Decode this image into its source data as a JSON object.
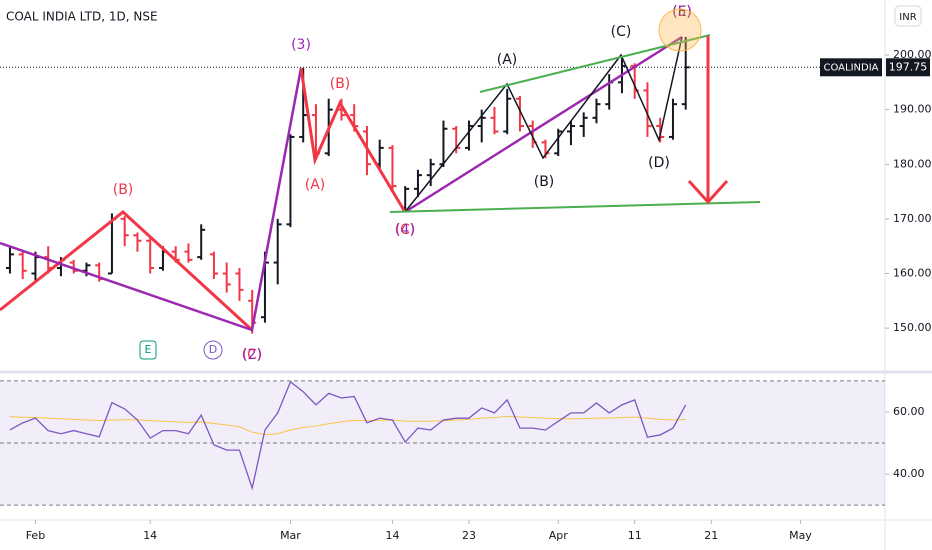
{
  "header": {
    "title": "COAL INDIA LTD, 1D, NSE",
    "currency": "INR"
  },
  "chart_data": [
    {
      "type": "ohlc",
      "symbol": "COALINDIA",
      "open": [
        161,
        163.5,
        160,
        163,
        161,
        162,
        160.5,
        161.5,
        160,
        170,
        167,
        166,
        161,
        164,
        164,
        163,
        163.5,
        160,
        160,
        155,
        152,
        162,
        169,
        185,
        189,
        182,
        190,
        189,
        186,
        180,
        183,
        172,
        175.5,
        178,
        180,
        186.5,
        183,
        187,
        188.5,
        186,
        192,
        187,
        184,
        182,
        186,
        187,
        188.5,
        191,
        195,
        198,
        193.5,
        187,
        185,
        191
      ],
      "high": [
        165,
        164,
        164,
        165,
        163,
        162.5,
        162,
        162,
        171,
        170.5,
        167.5,
        166.5,
        165,
        165,
        165.5,
        169,
        164,
        162,
        161,
        157,
        164,
        170,
        185.5,
        197.6,
        191,
        192,
        192,
        191,
        187,
        184.5,
        183.5,
        176,
        179,
        181,
        188,
        187,
        188,
        190,
        190.5,
        193.8,
        192.5,
        188,
        184.5,
        186.5,
        188,
        189.5,
        192,
        196.5,
        199.8,
        198.5,
        195,
        188.5,
        192,
        203.3
      ],
      "low": [
        160,
        159,
        158.5,
        160,
        159.5,
        160,
        159.5,
        158.5,
        160,
        165,
        164,
        160,
        160.5,
        162,
        162,
        162.5,
        159,
        156.5,
        155,
        149,
        151,
        158,
        168.5,
        184,
        180.8,
        181.5,
        188,
        186,
        178,
        179,
        175,
        171.3,
        174,
        176,
        179.5,
        182,
        182.5,
        184,
        185.5,
        185.5,
        186,
        183,
        181.1,
        181.5,
        183.5,
        185,
        187.5,
        190,
        193,
        192,
        185,
        184,
        184.5,
        190
      ],
      "close": [
        163.5,
        160.5,
        163,
        161,
        162.5,
        160.5,
        161.5,
        159,
        170,
        167,
        166,
        161,
        164,
        162.5,
        162.5,
        168,
        160,
        158,
        157,
        151,
        162,
        169,
        185,
        189,
        182,
        190,
        189,
        187,
        180,
        183,
        176,
        175.5,
        178,
        180,
        186.5,
        183,
        187,
        188.5,
        186,
        192,
        187,
        184,
        182,
        186,
        187,
        188.5,
        191,
        195,
        198,
        193.5,
        187,
        185,
        191,
        197.75
      ],
      "up_color": "#131722",
      "down_color": "#f23645",
      "xlim": [
        -0.78,
        68.63
      ],
      "ylim": [
        142.7,
        210.07
      ],
      "yticks": [
        {
          "value": 150,
          "label": "150.00"
        },
        {
          "value": 160,
          "label": "160.00"
        },
        {
          "value": 170,
          "label": "170.00"
        },
        {
          "value": 180,
          "label": "180.00"
        },
        {
          "value": 190,
          "label": "190.00"
        },
        {
          "value": 200,
          "label": "200.00"
        }
      ],
      "xticks": [
        {
          "value": 2,
          "label": "Feb"
        },
        {
          "value": 11,
          "label": "14"
        },
        {
          "value": 22,
          "label": "Mar"
        },
        {
          "value": 30,
          "label": "14"
        },
        {
          "value": 36,
          "label": "23"
        },
        {
          "value": 43,
          "label": "Apr"
        },
        {
          "value": 49,
          "label": "11"
        },
        {
          "value": 55,
          "label": "21"
        },
        {
          "value": 62,
          "label": "May"
        }
      ],
      "annotations": [
        {
          "text": "(B)",
          "color": "#f23645"
        },
        {
          "text": "(C)",
          "color": "#f23645"
        },
        {
          "text": "(2)",
          "color": "#9c27b0"
        },
        {
          "text": "(3)",
          "color": "#9c27b0"
        },
        {
          "text": "(B)",
          "color": "#f23645"
        },
        {
          "text": "(A)",
          "color": "#f23645"
        },
        {
          "text": "(C)",
          "color": "#f23645"
        },
        {
          "text": "(4)",
          "color": "#9c27b0"
        },
        {
          "text": "(A)",
          "color": "#131722"
        },
        {
          "text": "(B)",
          "color": "#131722"
        },
        {
          "text": "(C)",
          "color": "#131722"
        },
        {
          "text": "(D)",
          "color": "#131722"
        },
        {
          "text": "(E)",
          "color": "#131722"
        },
        {
          "text": "(5)",
          "color": "#9c27b0"
        },
        {
          "text": "E",
          "color": "#089981"
        },
        {
          "text": "D",
          "color": "#7e57c2"
        }
      ]
    },
    {
      "type": "line",
      "xlim": [
        -0.78,
        68.63
      ],
      "ylim": [
        25.2,
        70.3
      ],
      "yticks": [
        {
          "value": 40,
          "label": "40.00"
        },
        {
          "value": 60,
          "label": "60.00"
        }
      ],
      "levels": [
        30,
        50,
        70
      ],
      "series": [
        {
          "color": "#7e57c2",
          "values": [
            54.2,
            56.5,
            58,
            54,
            53,
            54,
            53,
            52,
            63,
            61,
            57.4,
            51.6,
            54,
            54,
            53,
            59,
            49.4,
            47.7,
            47.7,
            35.5,
            54.2,
            59.7,
            69.7,
            66.5,
            62.3,
            66,
            64.5,
            65,
            56.5,
            58,
            57.4,
            50.3,
            54.8,
            54.2,
            57.4,
            58,
            58,
            61.3,
            59.7,
            63.9,
            54.8,
            54.8,
            54.2,
            57,
            59.7,
            59.7,
            62.9,
            59.7,
            62.3,
            63.9,
            51.9,
            52.6,
            54.8,
            62.3
          ]
        },
        {
          "color": "#f7c548",
          "values": [
            58.5,
            58.3,
            58.2,
            58.0,
            57.8,
            57.6,
            57.4,
            57.2,
            57.4,
            57.5,
            57.5,
            57.2,
            57.0,
            56.8,
            56.6,
            56.8,
            56.3,
            55.8,
            55.2,
            53.5,
            52.7,
            53.0,
            54.2,
            55.0,
            55.5,
            56.2,
            56.8,
            57.3,
            57.2,
            57.3,
            57.4,
            57.0,
            57.0,
            57.0,
            57.2,
            57.4,
            57.6,
            58.0,
            58.2,
            58.6,
            58.4,
            58.2,
            58.0,
            57.8,
            57.8,
            57.8,
            58.0,
            58.0,
            58.2,
            58.4,
            58.0,
            57.6,
            57.4,
            57.6
          ]
        }
      ]
    }
  ]
}
